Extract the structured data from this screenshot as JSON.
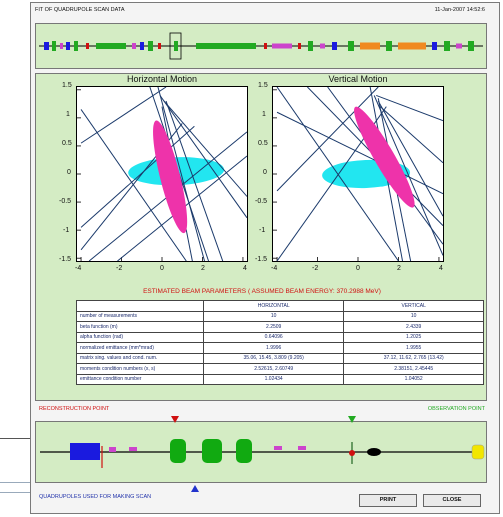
{
  "window": {
    "title": "FIT OF QUADRUPOLE SCAN DATA",
    "date": "11-Jan-2007 14:52:6"
  },
  "plots": {
    "horizontal_title": "Horizontal Motion",
    "vertical_title": "Vertical Motion",
    "x_ticks": [
      "-4",
      "-2",
      "0",
      "2",
      "4"
    ],
    "y_ticks": [
      "1.5",
      "1",
      "0.5",
      "0",
      "-0.5",
      "-1",
      "-1.5"
    ]
  },
  "colors": {
    "ellipse_magenta": "#ee33aa",
    "ellipse_cyan": "#22e6f0",
    "lines": "#1b3a6b",
    "panel_green": "#d4ecc4",
    "accent_red": "#d01010",
    "accent_green": "#22aa22",
    "accent_blue": "#2233aa"
  },
  "params": {
    "title": "ESTIMATED BEAM PARAMETERS  ( ASSUMED BEAM ENERGY: 370.2988 MeV)",
    "col_h": "HORIZONTAL",
    "col_v": "VERTICAL",
    "rows": [
      {
        "label": "number of measurements",
        "h": "10",
        "v": "10"
      },
      {
        "label": "beta function (m)",
        "h": "2.2509",
        "v": "2.4339"
      },
      {
        "label": "alpha function (rad)",
        "h": "0.64096",
        "v": "1.2025"
      },
      {
        "label": "normalized emittance (mm*mrad)",
        "h": "1.9996",
        "v": "1.9955"
      },
      {
        "label": "matrix sing. values and cond. num.",
        "h": "35.06, 15.45, 3.809 (9.205)",
        "v": "37.12, 11.62, 2.765 (13.42)"
      },
      {
        "label": "moments condition numbers (x, s)",
        "h": "2.52615, 2.60749",
        "v": "2.38151, 2.45445"
      },
      {
        "label": "emittance condition number",
        "h": "1.02434",
        "v": "1.04052"
      }
    ]
  },
  "beamline": {
    "reconstruction_label": "RECONSTRUCTION POINT",
    "observation_label": "OBSERVATION POINT",
    "quad_label": "QUADRUPOLES USED FOR MAKING SCAN"
  },
  "buttons": {
    "print": "PRINT",
    "close": "CLOSE"
  }
}
